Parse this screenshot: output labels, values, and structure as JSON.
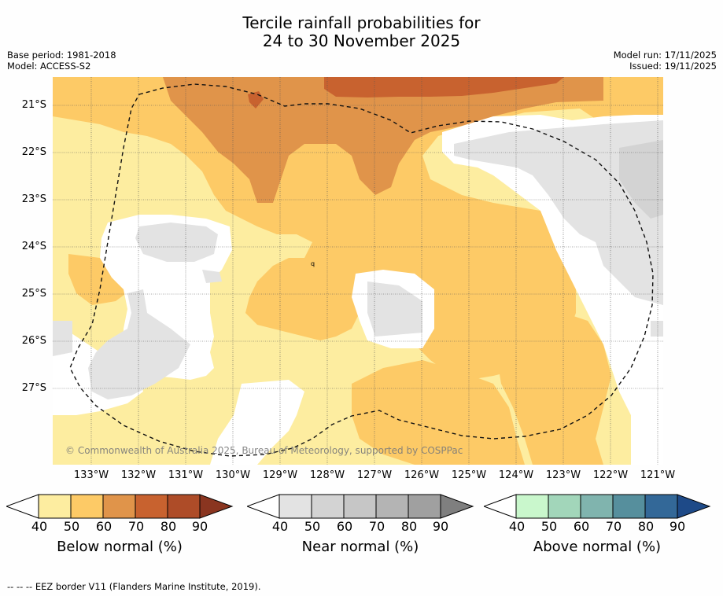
{
  "title_line1": "Tercile rainfall probabilities for",
  "title_line2": "24 to 30 November 2025",
  "base_period": "Base period: 1981-2018",
  "model": "Model: ACCESS-S2",
  "model_run": "Model run: 17/11/2025",
  "issued": "Issued: 19/11/2025",
  "copyright": "© Commonwealth of Australia 2025, Bureau of Meteorology, supported by COSPPac",
  "lat_labels": [
    "21°S",
    "22°S",
    "23°S",
    "24°S",
    "25°S",
    "26°S",
    "27°S"
  ],
  "lon_labels": [
    "133°W",
    "132°W",
    "131°W",
    "130°W",
    "129°W",
    "128°W",
    "127°W",
    "126°W",
    "125°W",
    "124°W",
    "123°W",
    "122°W",
    "121°W"
  ],
  "colorbars": [
    {
      "label": "Below normal (%)",
      "ticks": [
        "40",
        "50",
        "60",
        "70",
        "80",
        "90"
      ],
      "colors": [
        "#fdeda0",
        "#fdca66",
        "#e0944a",
        "#c8622f",
        "#ae4c28"
      ],
      "over": "#8a3520"
    },
    {
      "label": "Near normal (%)",
      "ticks": [
        "40",
        "50",
        "60",
        "70",
        "80",
        "90"
      ],
      "colors": [
        "#e3e3e3",
        "#d3d3d3",
        "#c6c6c6",
        "#b4b4b4",
        "#a0a0a0"
      ],
      "over": "#7f7f7f"
    },
    {
      "label": "Above normal (%)",
      "ticks": [
        "40",
        "50",
        "60",
        "70",
        "80",
        "90"
      ],
      "colors": [
        "#c9f7cc",
        "#a2d6ba",
        "#80b4ae",
        "#568f9d",
        "#336898"
      ],
      "over": "#1e4a88"
    }
  ],
  "footer": "--  --  -- EEZ border V11 (Flanders Marine Institute, 2019).",
  "map_colors": {
    "white": "#ffffff",
    "below_40": "#fdeda0",
    "below_50": "#fdca66",
    "below_60": "#e0944a",
    "below_70": "#c8622f",
    "near_40": "#e3e3e3",
    "near_50": "#d3d3d3"
  }
}
